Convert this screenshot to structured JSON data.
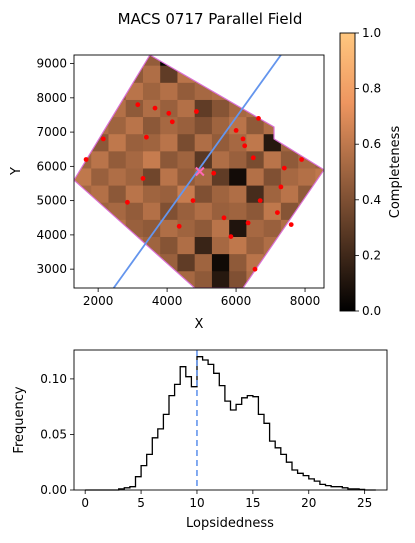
{
  "chart_data": [
    {
      "type": "heatmap",
      "title": "MACS 0717 Parallel Field",
      "xlabel": "X",
      "ylabel": "Y",
      "xlim": [
        1300,
        8550
      ],
      "ylim": [
        2450,
        9250
      ],
      "xticks": [
        "2000",
        "4000",
        "6000",
        "8000"
      ],
      "xtick_values": [
        2000,
        4000,
        6000,
        8000
      ],
      "yticks": [
        "3000",
        "4000",
        "5000",
        "6000",
        "7000",
        "8000",
        "9000"
      ],
      "ytick_values": [
        3000,
        4000,
        5000,
        6000,
        7000,
        8000,
        9000
      ],
      "colorbar": {
        "label": "Completeness",
        "range": [
          0,
          1
        ],
        "ticks": [
          "0.0",
          "0.2",
          "0.4",
          "0.6",
          "0.8",
          "1.0"
        ],
        "tick_values": [
          0,
          0.2,
          0.4,
          0.6,
          0.8,
          1.0
        ],
        "colormap": "copper"
      },
      "grid": {
        "x_start": 1300,
        "y_start": 2450,
        "cell_width": 500,
        "cell_height": 500,
        "cols": 15,
        "rows": 14,
        "values": [
          [
            0.5,
            0.55,
            0.48,
            0.42,
            0.6,
            0.35,
            0.52,
            0.45,
            0.12,
            0.4,
            0.55,
            0.62,
            0.5,
            0.48,
            0.45
          ],
          [
            0.58,
            0.45,
            0.52,
            0.4,
            0.55,
            0.48,
            0.3,
            0.5,
            0.05,
            0.45,
            0.58,
            0.52,
            0.46,
            0.55,
            0.5
          ],
          [
            0.48,
            0.52,
            0.45,
            0.55,
            0.5,
            0.42,
            0.55,
            0.18,
            0.52,
            0.6,
            0.48,
            0.55,
            0.5,
            0.44,
            0.52
          ],
          [
            0.55,
            0.42,
            0.58,
            0.48,
            0.45,
            0.55,
            0.5,
            0.45,
            0.58,
            0.1,
            0.52,
            0.48,
            0.55,
            0.58,
            0.46
          ],
          [
            0.45,
            0.5,
            0.52,
            0.46,
            0.56,
            0.4,
            0.48,
            0.55,
            0.48,
            0.5,
            0.44,
            0.6,
            0.42,
            0.5,
            0.54
          ],
          [
            0.52,
            0.56,
            0.44,
            0.58,
            0.5,
            0.48,
            0.62,
            0.4,
            0.5,
            0.55,
            0.22,
            0.5,
            0.58,
            0.45,
            0.48
          ],
          [
            0.6,
            0.48,
            0.55,
            0.5,
            0.35,
            0.58,
            0.46,
            0.52,
            0.3,
            0.06,
            0.56,
            0.4,
            0.52,
            0.56,
            0.6
          ],
          [
            0.5,
            0.58,
            0.46,
            0.52,
            0.62,
            0.44,
            0.5,
            0.28,
            0.55,
            0.48,
            0.38,
            0.58,
            0.45,
            0.52,
            0.48
          ],
          [
            0.56,
            0.44,
            0.6,
            0.48,
            0.5,
            0.58,
            0.38,
            0.55,
            0.46,
            0.52,
            0.6,
            0.12,
            0.5,
            0.46,
            0.58
          ],
          [
            0.46,
            0.55,
            0.5,
            0.58,
            0.44,
            0.52,
            0.48,
            0.4,
            0.5,
            0.58,
            0.45,
            0.55,
            0.55,
            0.5,
            0.52
          ],
          [
            0.58,
            0.48,
            0.56,
            0.45,
            0.55,
            0.48,
            0.56,
            0.3,
            0.42,
            0.52,
            0.55,
            0.48,
            0.58,
            0.45,
            0.5
          ],
          [
            0.5,
            0.55,
            0.45,
            0.58,
            0.5,
            0.56,
            0.46,
            0.52,
            0.55,
            0.2,
            0.48,
            0.55,
            0.45,
            0.56,
            0.48
          ],
          [
            0.55,
            0.5,
            0.58,
            0.45,
            0.55,
            0.3,
            0.58,
            0.48,
            0.5,
            0.58,
            0.52,
            0.46,
            0.55,
            0.5,
            0.56
          ],
          [
            0.48,
            0.55,
            0.5,
            0.52,
            0.46,
            0.02,
            0.4,
            0.55,
            0.45,
            0.5,
            0.56,
            0.52,
            0.48,
            0.55,
            0.5
          ]
        ]
      },
      "footprint": [
        [
          1300,
          5600
        ],
        [
          3500,
          9250
        ],
        [
          7100,
          7150
        ],
        [
          7100,
          6800
        ],
        [
          8550,
          5900
        ],
        [
          6200,
          2450
        ],
        [
          4800,
          2450
        ]
      ],
      "line": [
        [
          2450,
          2450
        ],
        [
          7300,
          9250
        ]
      ],
      "center_marker": [
        4950,
        5850
      ],
      "points": [
        [
          1650,
          6200
        ],
        [
          2150,
          6800
        ],
        [
          2850,
          4950
        ],
        [
          3150,
          7800
        ],
        [
          3300,
          5650
        ],
        [
          3400,
          6850
        ],
        [
          3650,
          7700
        ],
        [
          4050,
          7550
        ],
        [
          4150,
          7300
        ],
        [
          4350,
          4250
        ],
        [
          4750,
          5000
        ],
        [
          4850,
          7600
        ],
        [
          5350,
          5800
        ],
        [
          5650,
          4500
        ],
        [
          5850,
          3950
        ],
        [
          6000,
          7050
        ],
        [
          6200,
          6800
        ],
        [
          6250,
          6600
        ],
        [
          6350,
          4350
        ],
        [
          6500,
          6250
        ],
        [
          6550,
          3000
        ],
        [
          6650,
          7400
        ],
        [
          6700,
          5000
        ],
        [
          7200,
          4650
        ],
        [
          7400,
          5950
        ],
        [
          7300,
          5400
        ],
        [
          7600,
          4300
        ],
        [
          7900,
          6200
        ]
      ]
    },
    {
      "type": "line",
      "style": "step",
      "xlabel": "Lopsidedness",
      "ylabel": "Frequency",
      "xlim": [
        -1,
        27
      ],
      "ylim": [
        0,
        0.126
      ],
      "xticks": [
        "0",
        "5",
        "10",
        "15",
        "20",
        "25"
      ],
      "xtick_values": [
        0,
        5,
        10,
        15,
        20,
        25
      ],
      "yticks": [
        "0.00",
        "0.05",
        "0.10"
      ],
      "ytick_values": [
        0,
        0.05,
        0.1
      ],
      "bin_edges": [
        0,
        0.5,
        1,
        1.5,
        2,
        2.5,
        3,
        3.5,
        4,
        4.5,
        5,
        5.5,
        6,
        6.5,
        7,
        7.5,
        8,
        8.5,
        9,
        9.5,
        10,
        10.5,
        11,
        11.5,
        12,
        12.5,
        13,
        13.5,
        14,
        14.5,
        15,
        15.5,
        16,
        16.5,
        17,
        17.5,
        18,
        18.5,
        19,
        19.5,
        20,
        20.5,
        21,
        21.5,
        22,
        22.5,
        23,
        23.5,
        24,
        24.5,
        25,
        25.5,
        26
      ],
      "values": [
        0,
        0,
        0,
        0,
        0,
        0,
        0.001,
        0.002,
        0.003,
        0.012,
        0.022,
        0.032,
        0.047,
        0.055,
        0.068,
        0.085,
        0.095,
        0.111,
        0.102,
        0.093,
        0.12,
        0.117,
        0.113,
        0.105,
        0.094,
        0.08,
        0.072,
        0.077,
        0.083,
        0.085,
        0.084,
        0.068,
        0.06,
        0.044,
        0.038,
        0.032,
        0.025,
        0.018,
        0.015,
        0.013,
        0.01,
        0.008,
        0.005,
        0.004,
        0.003,
        0.003,
        0.002,
        0.001,
        0.001,
        0.0005,
        0,
        0
      ],
      "vline": {
        "x": 10,
        "style": "dashed",
        "color": "#6495ED"
      }
    }
  ],
  "colors": {
    "footprint": "#DA70D6",
    "line": "#6495ED",
    "points": "#FF0000",
    "center_marker": "#FF69B4",
    "step": "#000000"
  }
}
